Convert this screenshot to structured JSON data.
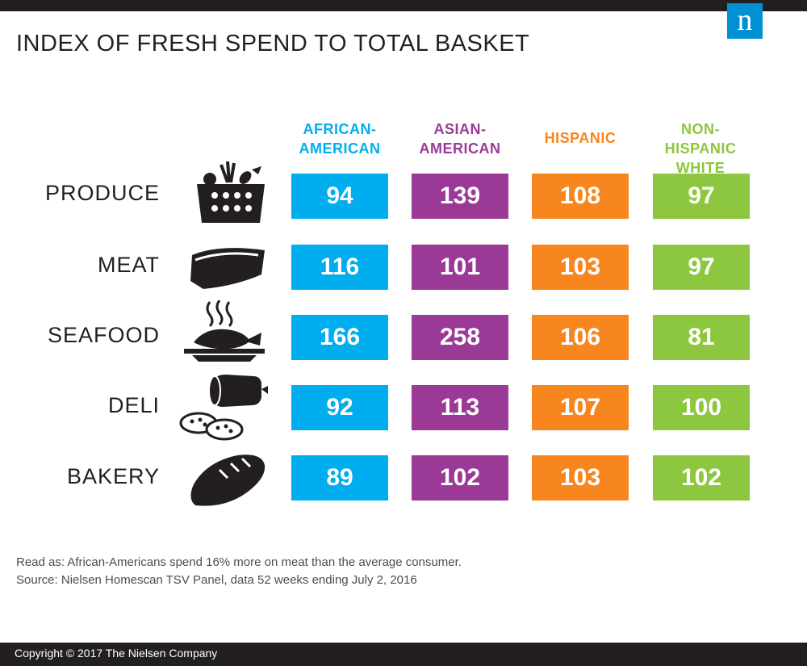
{
  "logo_letter": "n",
  "chart_data": {
    "type": "table",
    "title": "INDEX OF FRESH SPEND TO TOTAL BASKET",
    "columns": [
      {
        "name": "AFRICAN-AMERICAN",
        "line1": "AFRICAN-",
        "line2": "AMERICAN",
        "color": "#00aeef"
      },
      {
        "name": "ASIAN-AMERICAN",
        "line1": "ASIAN-",
        "line2": "AMERICAN",
        "color": "#9b3a96"
      },
      {
        "name": "HISPANIC",
        "line1": "HISPANIC",
        "line2": "",
        "color": "#f7861f"
      },
      {
        "name": "NON-HISPANIC WHITE",
        "line1": "NON-HISPANIC",
        "line2": "WHITE",
        "color": "#8dc63f"
      }
    ],
    "rows": [
      {
        "label": "PRODUCE",
        "icon": "produce-basket-icon",
        "values": [
          94,
          139,
          108,
          97
        ]
      },
      {
        "label": "MEAT",
        "icon": "steak-icon",
        "values": [
          116,
          101,
          103,
          97
        ]
      },
      {
        "label": "SEAFOOD",
        "icon": "cooked-fish-icon",
        "values": [
          166,
          258,
          106,
          81
        ]
      },
      {
        "label": "DELI",
        "icon": "salami-icon",
        "values": [
          92,
          113,
          107,
          100
        ]
      },
      {
        "label": "BAKERY",
        "icon": "bread-loaf-icon",
        "values": [
          89,
          102,
          103,
          102
        ]
      }
    ]
  },
  "notes": {
    "read_as": "Read as: African-Americans spend 16% more on meat than the average consumer.",
    "source": "Source: Nielsen Homescan TSV Panel, data 52 weeks ending July 2, 2016"
  },
  "footer": {
    "copyright": "Copyright © 2017 The Nielsen Company"
  }
}
